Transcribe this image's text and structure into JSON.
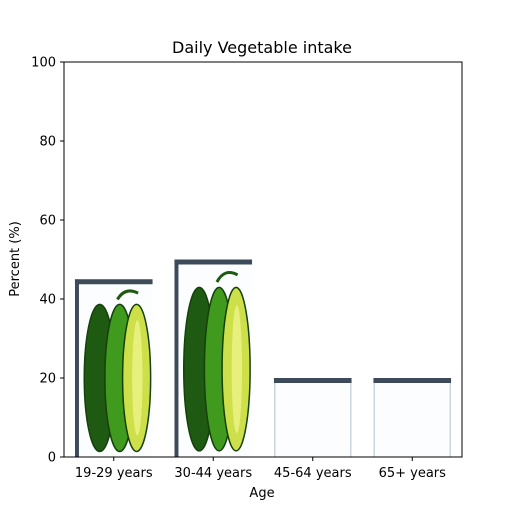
{
  "chart_data": {
    "type": "bar",
    "title": "Daily Vegetable intake",
    "xlabel": "Age",
    "ylabel": "Percent (%)",
    "categories": [
      "19-29 years",
      "30-44 years",
      "45-64 years",
      "65+ years"
    ],
    "values": [
      45,
      50,
      20,
      20
    ],
    "ylim": [
      0,
      100
    ],
    "yticks": [
      "0",
      "20",
      "40",
      "60",
      "80",
      "100"
    ],
    "grid": false,
    "legend": "none",
    "bar_fill": "pictorial-vegetable-image",
    "bar_images": [
      "green-pepper-image",
      "green-pepper-image",
      "blank",
      "blank"
    ],
    "colors": {
      "pepper_dark": "#1f5a12",
      "pepper_mid": "#3f9a1e",
      "pepper_light": "#cde04a",
      "frame": "#3c4a5a",
      "frame_light": "#c9d4dc",
      "axis": "#000000"
    }
  }
}
